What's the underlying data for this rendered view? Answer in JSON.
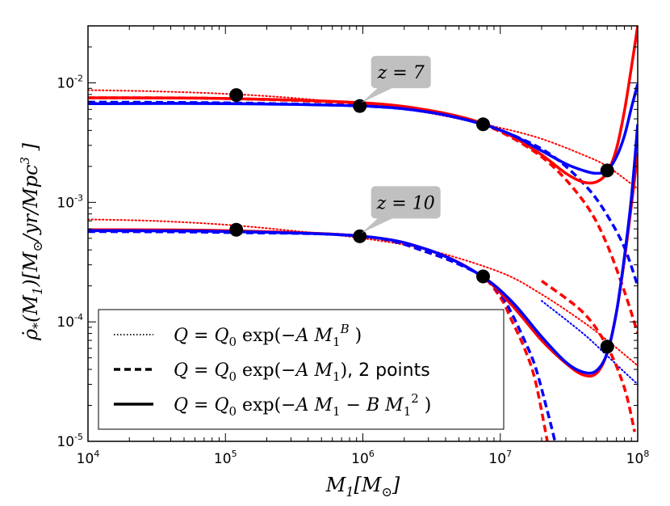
{
  "chart_data": {
    "type": "line",
    "xscale": "log",
    "yscale": "log",
    "xlim": [
      10000,
      100000000
    ],
    "ylim": [
      1e-05,
      0.03
    ],
    "xlabel": "M_1 [M_⊙]",
    "ylabel": "ρ̇_*(M_1)[M_⊙/yr/Mpc^3]",
    "x_tick_labels": [
      "10^4",
      "10^5",
      "10^6",
      "10^7",
      "10^8"
    ],
    "y_tick_labels": [
      "10^-5",
      "10^-4",
      "10^-3",
      "10^-2"
    ],
    "x_ticks": [
      {
        "base": "10",
        "exp": "4"
      },
      {
        "base": "10",
        "exp": "5"
      },
      {
        "base": "10",
        "exp": "6"
      },
      {
        "base": "10",
        "exp": "7"
      },
      {
        "base": "10",
        "exp": "8"
      }
    ],
    "y_ticks": [
      {
        "base": "10",
        "exp": "-5"
      },
      {
        "base": "10",
        "exp": "-4"
      },
      {
        "base": "10",
        "exp": "-3"
      },
      {
        "base": "10",
        "exp": "-2"
      }
    ],
    "legend": {
      "location": "lower-left",
      "entries": [
        {
          "style": "dotted",
          "label": "Q = Q_0 exp(−A M_1^B )"
        },
        {
          "style": "dashed",
          "label": "Q = Q_0 exp(−A M_1), 2 points"
        },
        {
          "style": "solid",
          "label": "Q = Q_0 exp(−A M_1 − B M_1^2 )"
        }
      ]
    },
    "annotations": [
      {
        "text": "z = 7",
        "anchor_x": 950000,
        "anchor_y": 0.0064
      },
      {
        "text": "z = 10",
        "anchor_x": 950000,
        "anchor_y": 0.00052
      }
    ],
    "colors": {
      "red": "#ff0000",
      "blue": "#0000ff",
      "points": "#000000"
    },
    "groups": [
      {
        "redshift": "z = 7",
        "points": [
          {
            "x": 120000,
            "y": 0.0079
          },
          {
            "x": 950000,
            "y": 0.0064
          },
          {
            "x": 7500000,
            "y": 0.0045
          },
          {
            "x": 60000000,
            "y": 0.00185
          }
        ],
        "series": [
          {
            "name": "z7 red dotted",
            "color": "red",
            "style": "dotted",
            "x": [
              10000,
              30000,
              100000,
              300000,
              1000000,
              3000000,
              10000000,
              20000000,
              40000000,
              60000000,
              100000000
            ],
            "y": [
              0.0087,
              0.0085,
              0.0081,
              0.0075,
              0.0066,
              0.0056,
              0.0042,
              0.0034,
              0.0025,
              0.002,
              0.0013
            ]
          },
          {
            "name": "z7 blue dotted",
            "color": "blue",
            "style": "dotted",
            "x": [
              10000,
              100000,
              1000000,
              3000000,
              7500000
            ],
            "y": [
              0.0068,
              0.0068,
              0.0064,
              0.0057,
              0.0046
            ]
          },
          {
            "name": "z7 red dashed",
            "color": "red",
            "style": "dashed",
            "x": [
              10000,
              100000,
              1000000,
              3000000,
              7000000,
              12000000,
              20000000,
              30000000,
              45000000,
              60000000,
              80000000,
              100000000
            ],
            "y": [
              0.0075,
              0.0074,
              0.0067,
              0.0058,
              0.0046,
              0.0035,
              0.0024,
              0.00155,
              0.00085,
              0.00044,
              0.00018,
              8e-05
            ]
          },
          {
            "name": "z7 blue dashed",
            "color": "blue",
            "style": "dashed",
            "x": [
              10000,
              100000,
              1000000,
              3000000,
              7000000,
              12000000,
              20000000,
              30000000,
              45000000,
              60000000,
              80000000,
              100000000
            ],
            "y": [
              0.0069,
              0.0068,
              0.0064,
              0.0057,
              0.0046,
              0.0037,
              0.0028,
              0.002,
              0.00125,
              0.00078,
              0.00042,
              0.0002
            ]
          },
          {
            "name": "z7 red solid",
            "color": "red",
            "style": "solid",
            "x": [
              10000,
              100000,
              1000000,
              3000000,
              7000000,
              12000000,
              20000000,
              30000000,
              40000000,
              50000000,
              60000000,
              70000000,
              80000000,
              90000000,
              100000000
            ],
            "y": [
              0.0075,
              0.0074,
              0.0068,
              0.0059,
              0.0047,
              0.0036,
              0.0025,
              0.00175,
              0.00148,
              0.00148,
              0.00178,
              0.0028,
              0.0058,
              0.0135,
              0.03
            ]
          },
          {
            "name": "z7 blue solid",
            "color": "blue",
            "style": "solid",
            "x": [
              10000,
              100000,
              1000000,
              3000000,
              7000000,
              12000000,
              20000000,
              30000000,
              40000000,
              50000000,
              60000000,
              70000000,
              80000000,
              90000000,
              100000000
            ],
            "y": [
              0.0067,
              0.0067,
              0.0064,
              0.0057,
              0.0046,
              0.0037,
              0.0027,
              0.0021,
              0.00185,
              0.00175,
              0.00185,
              0.0024,
              0.0036,
              0.0062,
              0.0098
            ]
          }
        ]
      },
      {
        "redshift": "z = 10",
        "points": [
          {
            "x": 120000,
            "y": 0.00059
          },
          {
            "x": 950000,
            "y": 0.00052
          },
          {
            "x": 7500000,
            "y": 0.00024
          },
          {
            "x": 60000000,
            "y": 6.2e-05
          }
        ],
        "series": [
          {
            "name": "z10 red dotted",
            "color": "red",
            "style": "dotted",
            "x": [
              10000,
              30000,
              100000,
              300000,
              1000000,
              3000000,
              10000000,
              20000000,
              40000000,
              60000000,
              100000000
            ],
            "y": [
              0.00072,
              0.0007,
              0.00065,
              0.00058,
              0.0005,
              0.0004,
              0.00026,
              0.00017,
              0.0001,
              7e-05,
              4.3e-05
            ]
          },
          {
            "name": "z10 blue dotted",
            "color": "blue",
            "style": "dotted",
            "x": [
              20000000,
              40000000,
              60000000,
              80000000,
              100000000
            ],
            "y": [
              0.00015,
              8e-05,
              5.2e-05,
              3.8e-05,
              3e-05
            ]
          },
          {
            "name": "z10 red dashed",
            "color": "red",
            "style": "dashed",
            "x": [
              10000,
              100000,
              1000000,
              3000000,
              7000000,
              10000000,
              12000000,
              15000000,
              18000000,
              22000000
            ],
            "y": [
              0.00058,
              0.00057,
              0.00052,
              0.00038,
              0.00025,
              0.00016,
              0.000105,
              6e-05,
              3.2e-05,
              1e-05
            ]
          },
          {
            "name": "z10 blue dashed",
            "color": "blue",
            "style": "dashed",
            "x": [
              10000,
              100000,
              1000000,
              3000000,
              7000000,
              10000000,
              12000000,
              15000000,
              18000000,
              22000000,
              25000000
            ],
            "y": [
              0.00057,
              0.00056,
              0.00052,
              0.00038,
              0.00025,
              0.00017,
              0.00012,
              7e-05,
              4.2e-05,
              1.8e-05,
              1e-05
            ]
          },
          {
            "name": "z10 red dashed tail",
            "color": "red",
            "style": "dashed",
            "x": [
              20000000,
              40000000,
              60000000,
              80000000,
              95000000
            ],
            "y": [
              0.00022,
              0.00012,
              6.2e-05,
              2.8e-05,
              1.2e-05
            ]
          },
          {
            "name": "z10 red solid",
            "color": "red",
            "style": "solid",
            "x": [
              10000,
              100000,
              1000000,
              3000000,
              7000000,
              12000000,
              20000000,
              30000000,
              40000000,
              50000000,
              60000000,
              70000000,
              80000000,
              90000000,
              100000000
            ],
            "y": [
              0.00059,
              0.00058,
              0.00052,
              0.0004,
              0.00025,
              0.00014,
              7e-05,
              4.5e-05,
              3.6e-05,
              3.7e-05,
              5.5e-05,
              0.00012,
              0.00033,
              0.00095,
              0.0026
            ]
          },
          {
            "name": "z10 blue solid",
            "color": "blue",
            "style": "solid",
            "x": [
              10000,
              100000,
              1000000,
              3000000,
              7000000,
              12000000,
              20000000,
              30000000,
              40000000,
              50000000,
              60000000,
              70000000,
              80000000,
              90000000,
              100000000
            ],
            "y": [
              0.00058,
              0.00057,
              0.00052,
              0.0004,
              0.00025,
              0.00015,
              7.5e-05,
              4.6e-05,
              3.8e-05,
              3.9e-05,
              5.5e-05,
              0.00012,
              0.00035,
              0.0011,
              0.0045
            ]
          }
        ]
      }
    ]
  }
}
